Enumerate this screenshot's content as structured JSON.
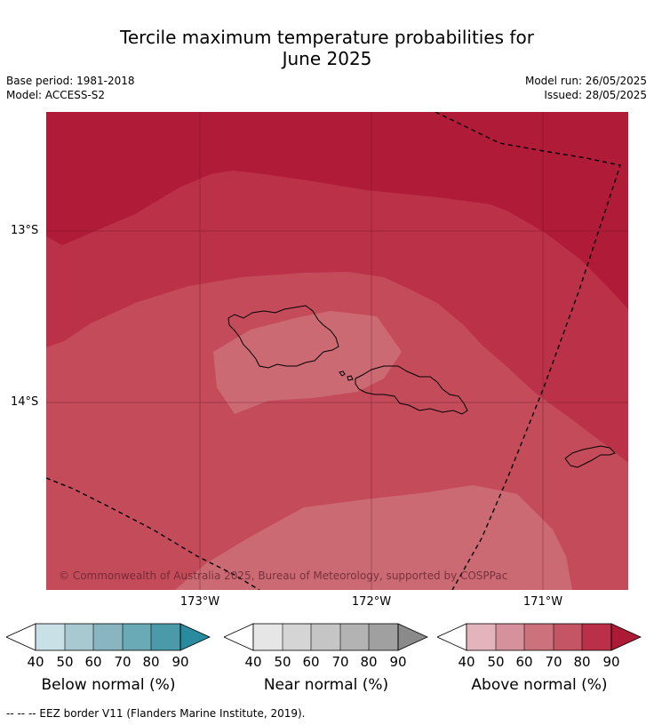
{
  "title": {
    "line1": "Tercile maximum temperature probabilities for",
    "line2": "June 2025"
  },
  "meta": {
    "base_period": "Base period: 1981-2018",
    "model": "Model: ACCESS-S2",
    "model_run": "Model run: 26/05/2025",
    "issued": "Issued: 28/05/2025"
  },
  "map": {
    "lat_labels": [
      "13°S",
      "14°S"
    ],
    "lon_labels": [
      "173°W",
      "172°W",
      "171°W"
    ],
    "copyright": "© Commonwealth of Australia 2025, Bureau of Meteorology, supported by COSPPac",
    "colors": {
      "above_90": "#b01c38",
      "above_80": "#bb3248",
      "above_70": "#c44c5a",
      "above_60": "#cc6a74",
      "land_outline": "#000000"
    }
  },
  "legend": {
    "ticks": [
      "40",
      "50",
      "60",
      "70",
      "80",
      "90"
    ],
    "bars": [
      {
        "label": "Below normal (%)",
        "colors": [
          "#c9e0e6",
          "#a8c9d0",
          "#88b5c0",
          "#6aa9b6",
          "#4a9aaa",
          "#2a8b9f"
        ]
      },
      {
        "label": "Near normal (%)",
        "colors": [
          "#e6e6e6",
          "#d5d5d5",
          "#c5c5c5",
          "#b3b3b3",
          "#a0a0a0",
          "#8a8a8a"
        ]
      },
      {
        "label": "Above normal (%)",
        "colors": [
          "#e3b4bc",
          "#d5929c",
          "#cc727c",
          "#c45565",
          "#b93048",
          "#ad1a36"
        ]
      }
    ]
  },
  "footnote": "-- -- -- EEZ border V11 (Flanders Marine Institute, 2019)."
}
